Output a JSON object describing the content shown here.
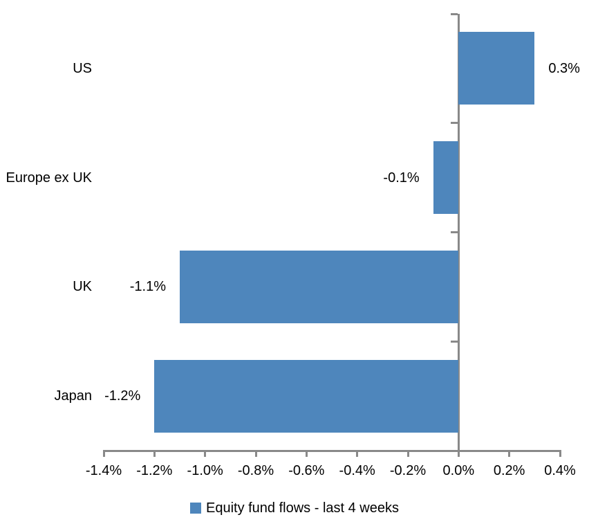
{
  "chart_data": {
    "type": "bar",
    "orientation": "horizontal",
    "title": "",
    "xlabel": "",
    "ylabel": "",
    "categories": [
      "US",
      "Europe ex UK",
      "UK",
      "Japan"
    ],
    "series": [
      {
        "name": "Equity fund flows - last 4 weeks",
        "values": [
          0.3,
          -0.1,
          -1.1,
          -1.2
        ],
        "value_labels": [
          "0.3%",
          "-0.1%",
          "-1.1%",
          "-1.2%"
        ]
      }
    ],
    "xlim": [
      -1.4,
      0.4
    ],
    "xticks": [
      -1.4,
      -1.2,
      -1.0,
      -0.8,
      -0.6,
      -0.4,
      -0.2,
      0.0,
      0.2,
      0.4
    ],
    "xtick_labels": [
      "-1.4%",
      "-1.2%",
      "-1.0%",
      "-0.8%",
      "-0.6%",
      "-0.4%",
      "-0.2%",
      "0.0%",
      "0.2%",
      "0.4%"
    ],
    "grid": "off",
    "legend_position": "bottom",
    "colors": {
      "bar": "#4E86BC",
      "axis": "#898989",
      "text": "#000000",
      "background": "#FFFFFF"
    }
  },
  "legend": {
    "swatch_icon": "square-swatch",
    "label": "Equity fund flows - last 4 weeks"
  }
}
